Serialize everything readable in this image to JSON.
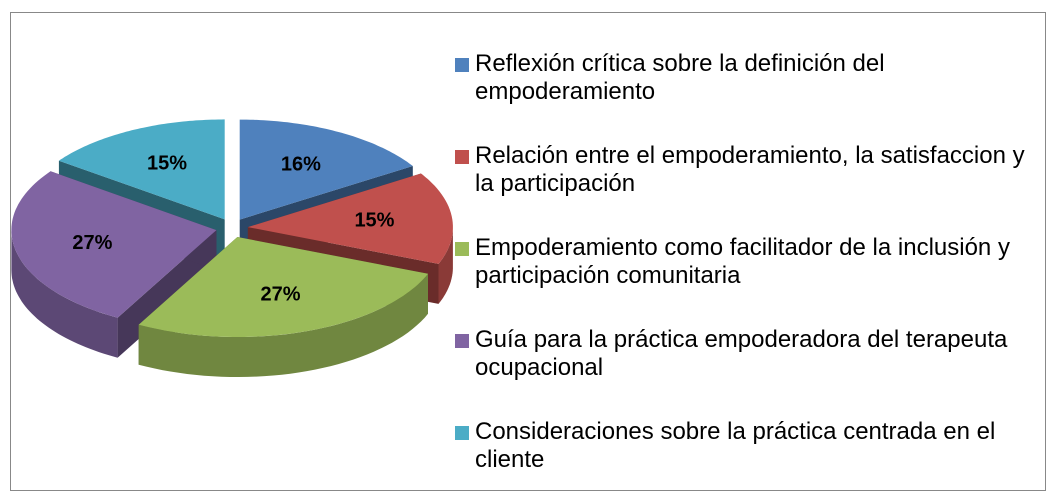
{
  "chart_data": {
    "type": "pie3d",
    "categories": [
      "Reflexión crítica sobre la definición del empoderamiento",
      "Relación entre el empoderamiento, la satisfaccion y la participación",
      "Empoderamiento como facilitador de la inclusión y participación comunitaria",
      "Guía para la práctica empoderadora del terapeuta ocupacional",
      "Consideraciones sobre la práctica centrada en el cliente"
    ],
    "values": [
      16,
      15,
      27,
      27,
      15
    ],
    "value_labels": [
      "16%",
      "15%",
      "27%",
      "27%",
      "15%"
    ],
    "colors": [
      "#4f81bd",
      "#c0504d",
      "#9bbb59",
      "#8064a2",
      "#4bacc6"
    ],
    "legend": "right"
  }
}
